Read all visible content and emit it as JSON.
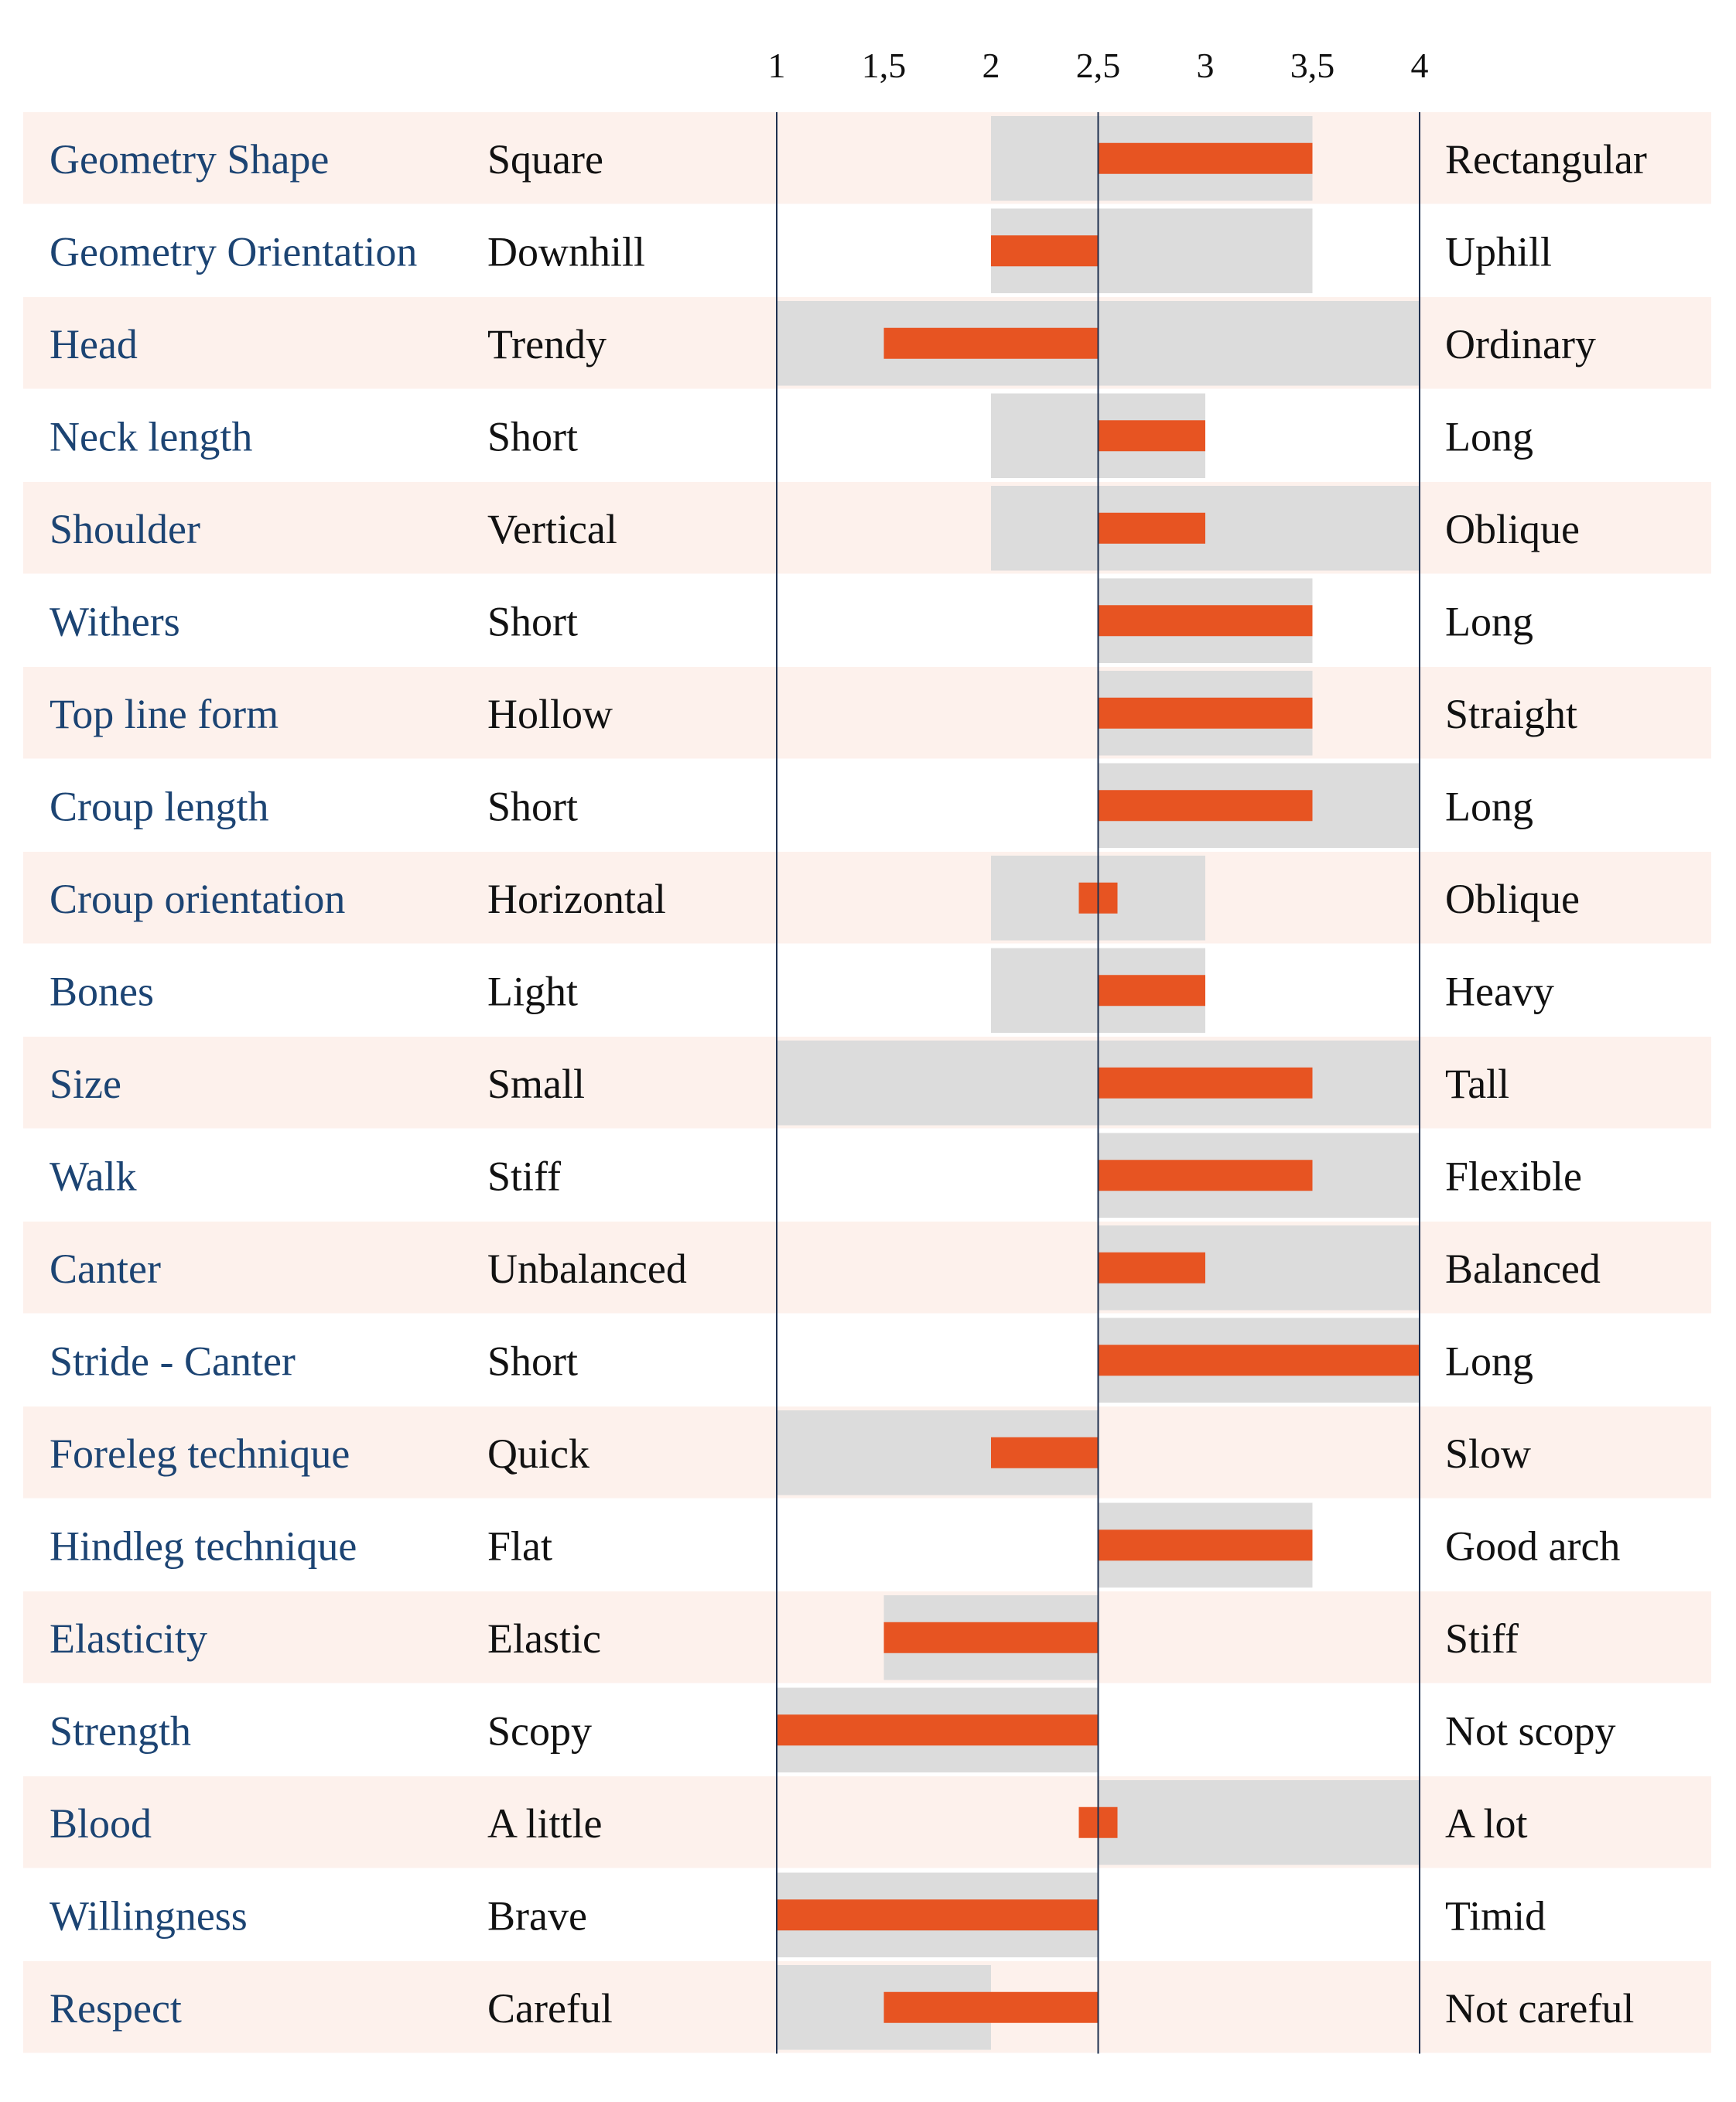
{
  "colors": {
    "row_stripe": "#fdf1ec",
    "range_band": "#dcdcdc",
    "value_bar": "#e75422",
    "axis_line": "#1f3150",
    "trait_text": "#1c4473",
    "pole_text": "#111111"
  },
  "chart_data": {
    "type": "bar",
    "subtype": "diverging horizontal bar with range bands",
    "xlim": [
      1,
      4
    ],
    "center": 2.5,
    "x_ticks": [
      "1",
      "1,5",
      "2",
      "2,5",
      "3",
      "3,5",
      "4"
    ],
    "x_tick_values": [
      1,
      1.5,
      2,
      2.5,
      3,
      3.5,
      4
    ],
    "rows": [
      {
        "trait": "Geometry Shape",
        "low": "Square",
        "high": "Rectangular",
        "value": 3.5,
        "range": [
          2,
          3.5
        ]
      },
      {
        "trait": "Geometry Orientation",
        "low": "Downhill",
        "high": "Uphill",
        "value": 2,
        "range": [
          2,
          3.5
        ]
      },
      {
        "trait": "Head",
        "low": "Trendy",
        "high": "Ordinary",
        "value": 1.5,
        "range": [
          1,
          4
        ]
      },
      {
        "trait": "Neck length",
        "low": "Short",
        "high": "Long",
        "value": 3,
        "range": [
          2,
          3
        ]
      },
      {
        "trait": "Shoulder",
        "low": "Vertical",
        "high": "Oblique",
        "value": 3,
        "range": [
          2,
          4
        ]
      },
      {
        "trait": "Withers",
        "low": "Short",
        "high": "Long",
        "value": 3.5,
        "range": [
          2.5,
          3.5
        ]
      },
      {
        "trait": "Top line form",
        "low": "Hollow",
        "high": "Straight",
        "value": 3.5,
        "range": [
          2.5,
          3.5
        ]
      },
      {
        "trait": "Croup length",
        "low": "Short",
        "high": "Long",
        "value": 3.5,
        "range": [
          2.5,
          4
        ]
      },
      {
        "trait": "Croup orientation",
        "low": "Horizontal",
        "high": "Oblique",
        "value": 2.5,
        "range": [
          2,
          3
        ]
      },
      {
        "trait": "Bones",
        "low": "Light",
        "high": "Heavy",
        "value": 3,
        "range": [
          2,
          3
        ]
      },
      {
        "trait": "Size",
        "low": "Small",
        "high": "Tall",
        "value": 3.5,
        "range": [
          1,
          4
        ]
      },
      {
        "trait": "Walk",
        "low": "Stiff",
        "high": "Flexible",
        "value": 3.5,
        "range": [
          2.5,
          4
        ]
      },
      {
        "trait": "Canter",
        "low": "Unbalanced",
        "high": "Balanced",
        "value": 3,
        "range": [
          2.5,
          4
        ]
      },
      {
        "trait": "Stride - Canter",
        "low": "Short",
        "high": "Long",
        "value": 4,
        "range": [
          2.5,
          4
        ]
      },
      {
        "trait": "Foreleg technique",
        "low": "Quick",
        "high": "Slow",
        "value": 2,
        "range": [
          1,
          2.5
        ]
      },
      {
        "trait": "Hindleg technique",
        "low": "Flat",
        "high": "Good arch",
        "value": 3.5,
        "range": [
          2.5,
          3.5
        ]
      },
      {
        "trait": "Elasticity",
        "low": "Elastic",
        "high": "Stiff",
        "value": 1.5,
        "range": [
          1.5,
          2.5
        ]
      },
      {
        "trait": "Strength",
        "low": "Scopy",
        "high": "Not scopy",
        "value": 1,
        "range": [
          1,
          2.5
        ]
      },
      {
        "trait": "Blood",
        "low": "A little",
        "high": "A lot",
        "value": 2.5,
        "range": [
          2.5,
          4
        ]
      },
      {
        "trait": "Willingness",
        "low": "Brave",
        "high": "Timid",
        "value": 1,
        "range": [
          1,
          2.5
        ]
      },
      {
        "trait": "Respect",
        "low": "Careful",
        "high": "Not careful",
        "value": 1.5,
        "range": [
          1,
          2
        ]
      }
    ]
  }
}
